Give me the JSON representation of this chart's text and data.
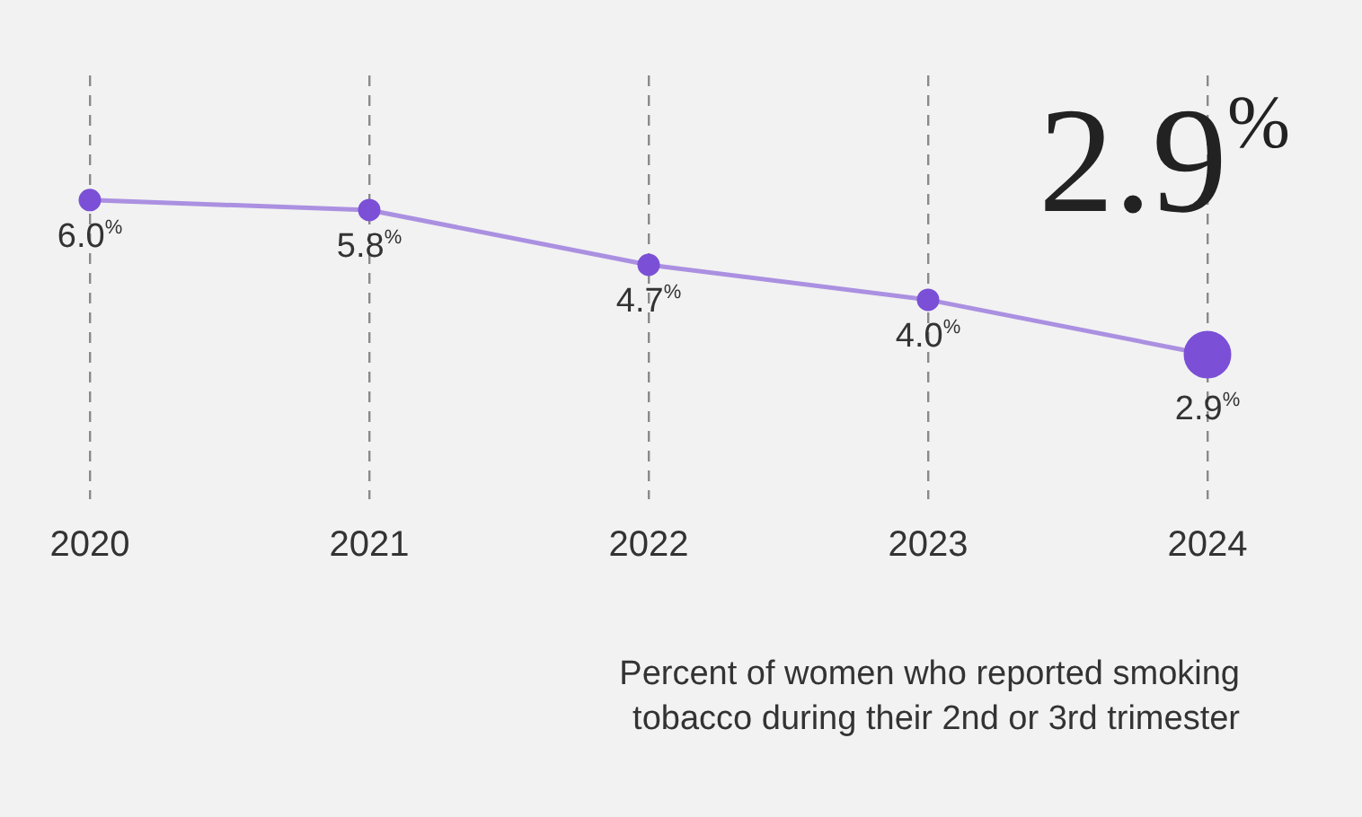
{
  "chart_data": {
    "type": "line",
    "categories": [
      "2020",
      "2021",
      "2022",
      "2023",
      "2024"
    ],
    "series": [
      {
        "color": "#7b4fd6",
        "values": [
          6.0,
          5.8,
          4.7,
          4.0,
          2.9
        ],
        "value_labels": [
          "6.0$^{%}$",
          "5.8$^{%}$",
          "4.7$^{%}$",
          "4.0$^{%}$",
          "2.9$^{%}$"
        ]
      }
    ],
    "ylim": [
      0,
      8.5
    ],
    "tick_labels": "x",
    "grid": "x",
    "legend": false,
    "marker": "circle",
    "line_style": "solid",
    "annotations": [
      "2.9$^{%}$",
      "Percent of women who reported smoking\ntobacco during their 2nd or 3rd trimester"
    ]
  }
}
